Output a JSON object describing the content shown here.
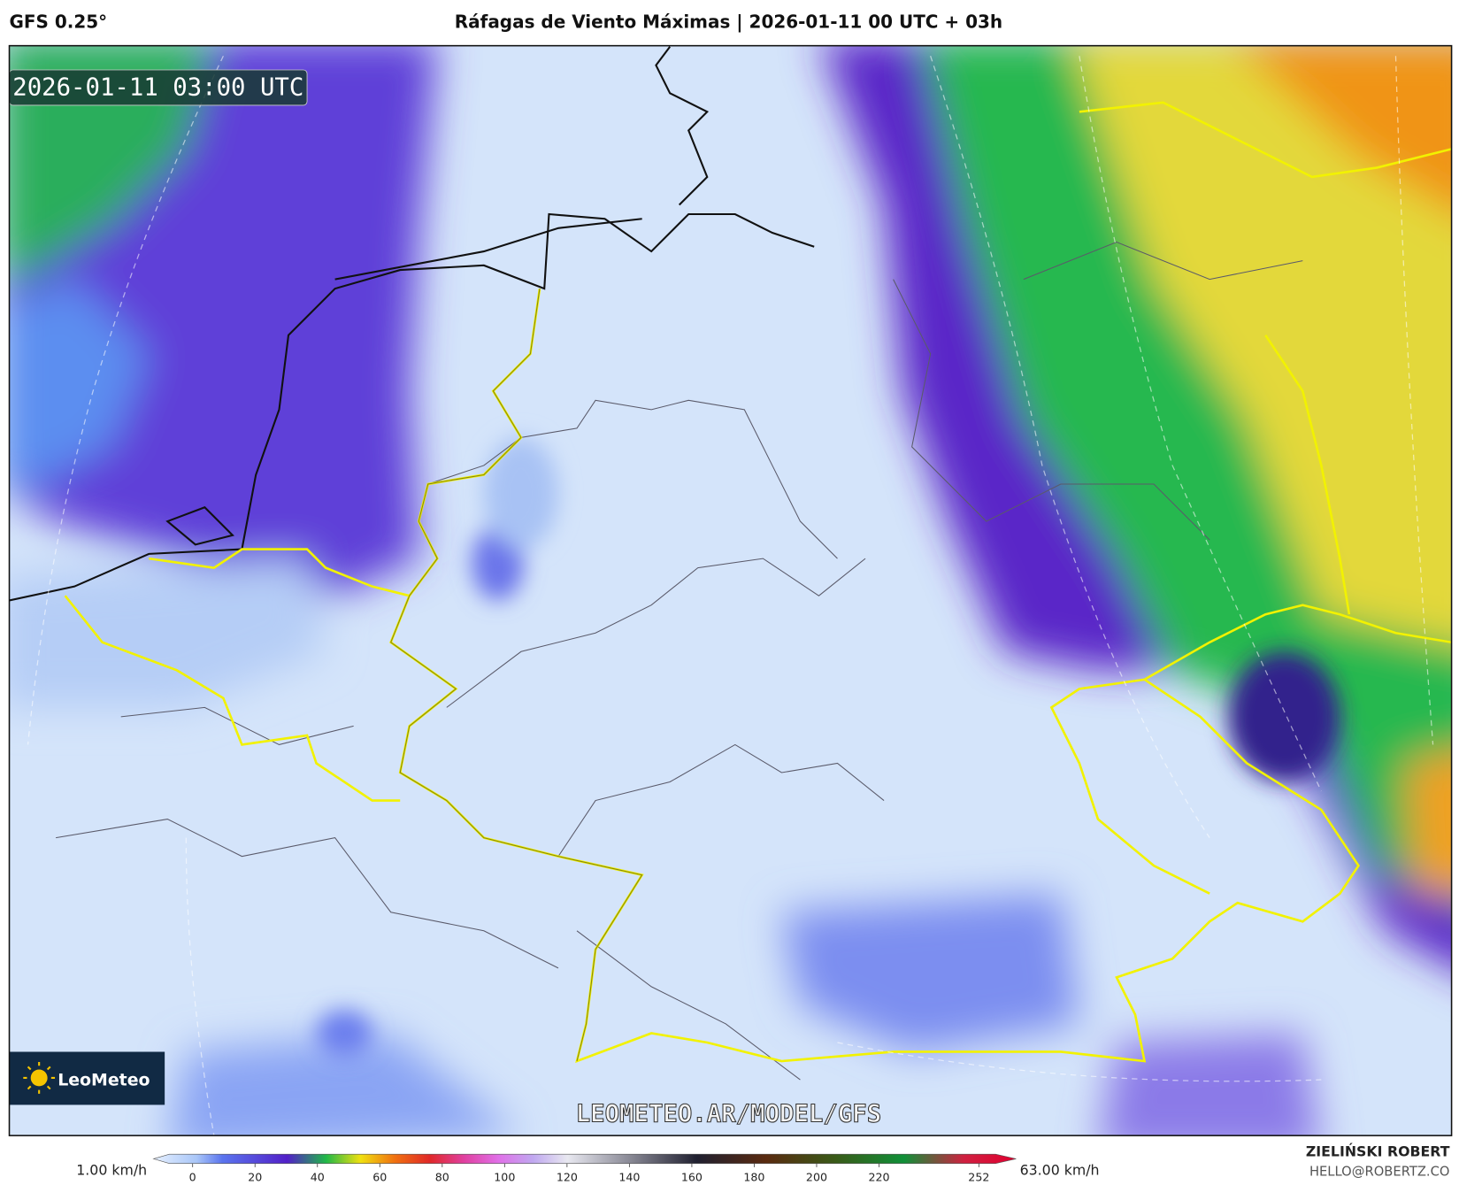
{
  "header": {
    "model": "GFS 0.25°",
    "title": "Ráfagas de Viento Máximas | 2026-01-11 00 UTC + 03h"
  },
  "map": {
    "timestamp": "2026-01-11 03:00 UTC",
    "logo": "LeoMeteo",
    "watermark": "LEOMETEO.AR/MODEL/GFS"
  },
  "colorbar": {
    "min_label": "1.00 km/h",
    "max_label": "63.00 km/h",
    "ticks": [
      0,
      20,
      40,
      60,
      80,
      100,
      120,
      140,
      160,
      180,
      200,
      220,
      252
    ]
  },
  "footer": {
    "author": "ZIELIŃSKI ROBERT",
    "email": "HELLO@ROBERTZ.CO"
  }
}
